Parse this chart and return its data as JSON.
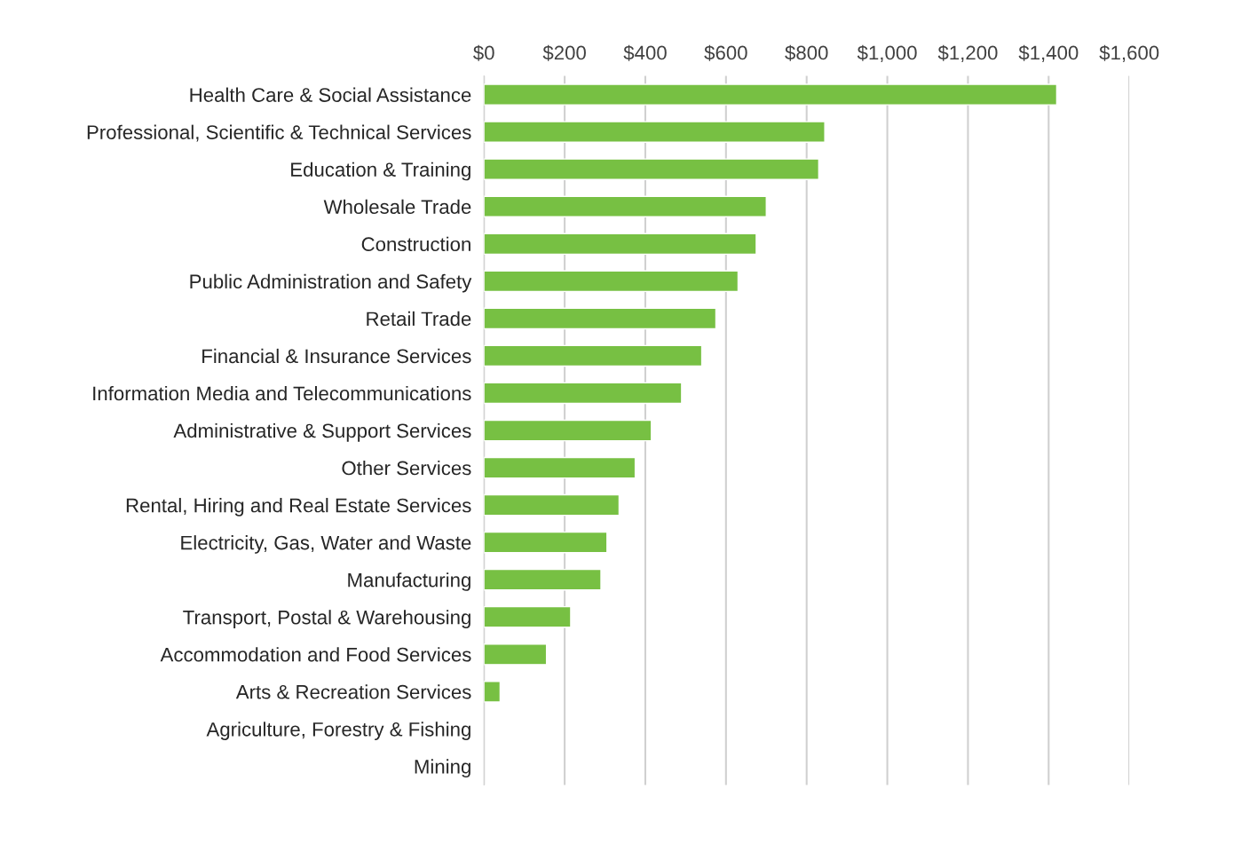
{
  "chart_data": {
    "type": "bar",
    "orientation": "horizontal",
    "categories": [
      "Health Care & Social Assistance",
      "Professional, Scientific & Technical Services",
      "Education & Training",
      "Wholesale Trade",
      "Construction",
      "Public Administration and Safety",
      "Retail Trade",
      "Financial & Insurance Services",
      "Information Media and Telecommunications",
      "Administrative & Support Services",
      "Other Services",
      "Rental, Hiring and Real Estate Services",
      "Electricity, Gas, Water and Waste",
      "Manufacturing",
      "Transport, Postal & Warehousing",
      "Accommodation and Food Services",
      "Arts & Recreation Services",
      "Agriculture, Forestry & Fishing",
      "Mining"
    ],
    "values": [
      1420,
      845,
      830,
      700,
      675,
      630,
      575,
      540,
      490,
      415,
      375,
      335,
      305,
      290,
      215,
      155,
      40,
      null,
      null
    ],
    "color": "#77c043",
    "xlim": [
      0,
      1600
    ],
    "xticks": [
      {
        "value": 0,
        "label": "$0"
      },
      {
        "value": 200,
        "label": "$200"
      },
      {
        "value": 400,
        "label": "$400"
      },
      {
        "value": 600,
        "label": "$600"
      },
      {
        "value": 800,
        "label": "$800"
      },
      {
        "value": 1000,
        "label": "$1,000"
      },
      {
        "value": 1200,
        "label": "$1,200"
      },
      {
        "value": 1400,
        "label": "$1,400"
      },
      {
        "value": 1600,
        "label": "$1,600"
      }
    ],
    "grid": "x",
    "legend": false
  }
}
